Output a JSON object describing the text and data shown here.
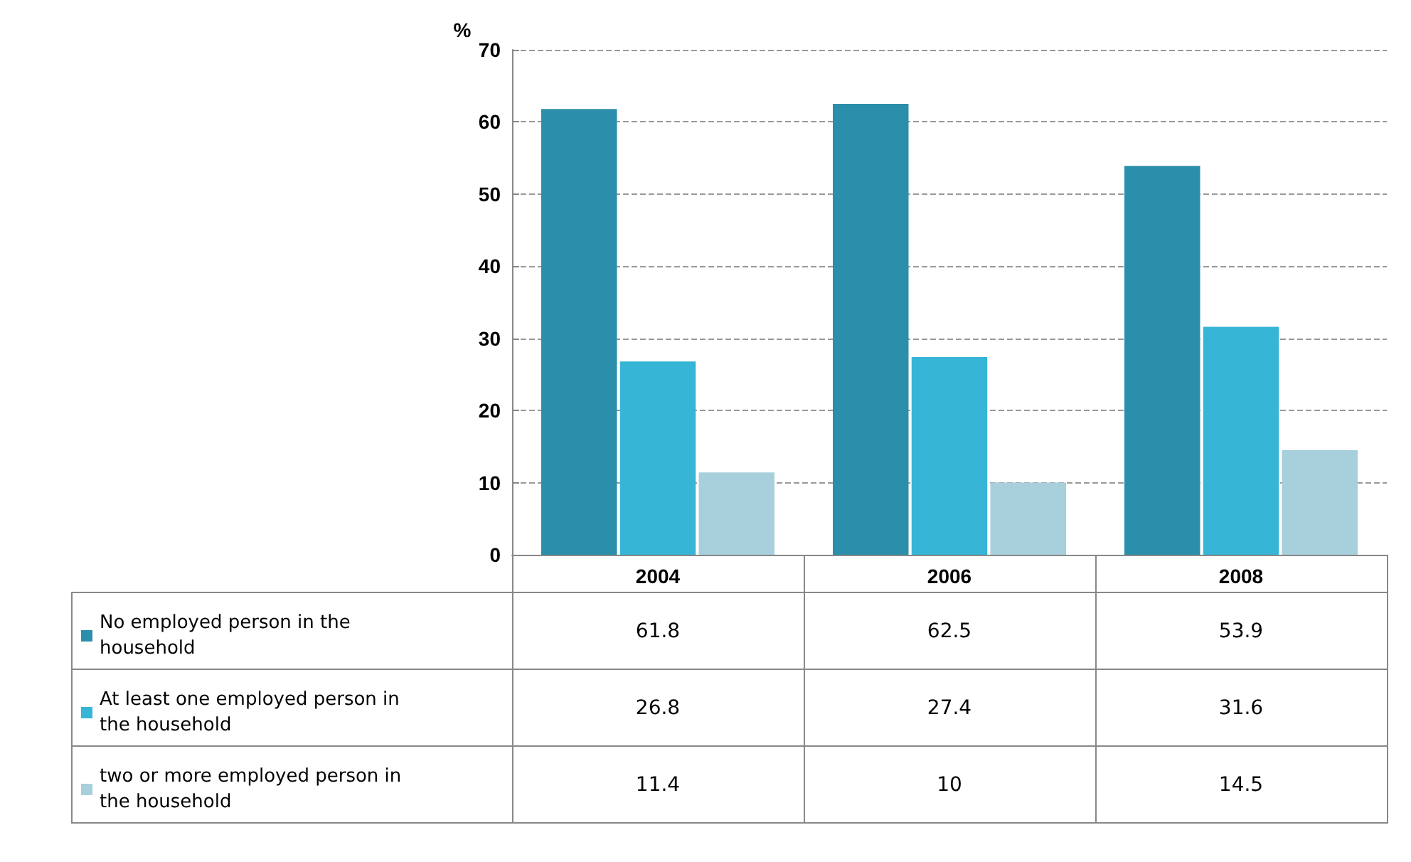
{
  "chart_data": {
    "type": "bar",
    "ylabel": "%",
    "categories": [
      "2004",
      "2006",
      "2008"
    ],
    "series": [
      {
        "name": "No employed person in the household",
        "color": "#2b8fab",
        "values": [
          61.8,
          62.5,
          53.9
        ]
      },
      {
        "name": "At least one employed person in the household",
        "color": "#36b5d6",
        "values": [
          26.8,
          27.4,
          31.6
        ]
      },
      {
        "name": "two or more employed person in the household",
        "color": "#a8cfdc",
        "values": [
          11.4,
          10,
          14.5
        ]
      }
    ],
    "ylim": [
      0,
      70
    ],
    "yticks": [
      0,
      10,
      20,
      30,
      40,
      50,
      60,
      70
    ],
    "grid": "y",
    "legend": "bottom",
    "data_labels": true
  }
}
